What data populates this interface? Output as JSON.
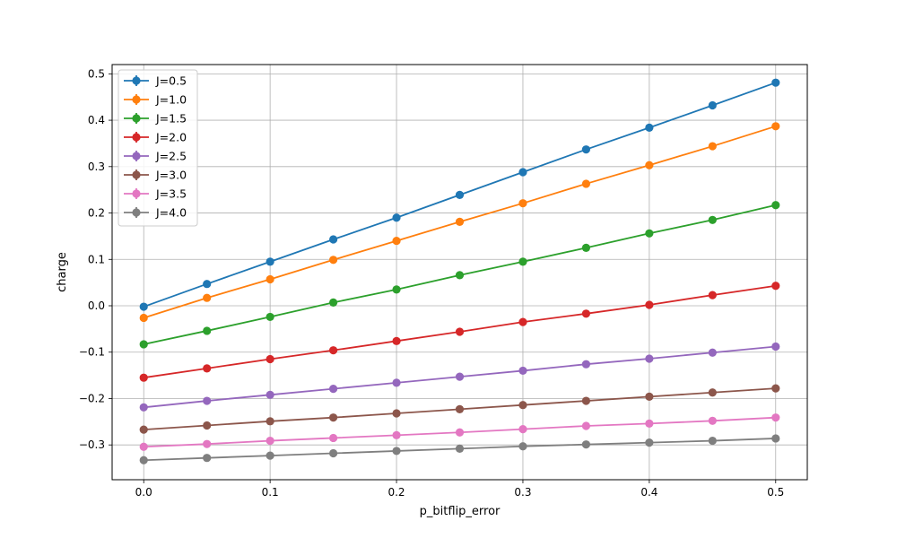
{
  "chart_data": {
    "type": "line",
    "title": "",
    "xlabel": "p_bitflip_error",
    "ylabel": "charge",
    "xlim": [
      -0.025,
      0.525
    ],
    "ylim": [
      -0.375,
      0.52
    ],
    "x": [
      0.0,
      0.05,
      0.1,
      0.15,
      0.2,
      0.25,
      0.3,
      0.35,
      0.4,
      0.45,
      0.5
    ],
    "x_ticks": [
      0.0,
      0.1,
      0.2,
      0.3,
      0.4,
      0.5
    ],
    "x_tick_labels": [
      "0.0",
      "0.1",
      "0.2",
      "0.3",
      "0.4",
      "0.5"
    ],
    "y_ticks": [
      -0.3,
      -0.2,
      -0.1,
      0.0,
      0.1,
      0.2,
      0.3,
      0.4,
      0.5
    ],
    "y_tick_labels": [
      "−0.3",
      "−0.2",
      "−0.1",
      "0.0",
      "0.1",
      "0.2",
      "0.3",
      "0.4",
      "0.5"
    ],
    "grid": true,
    "legend_position": "top-left",
    "series": [
      {
        "name": "J=0.5",
        "color": "#1f77b4",
        "values": [
          -0.002,
          0.047,
          0.095,
          0.143,
          0.19,
          0.239,
          0.288,
          0.337,
          0.384,
          0.432,
          0.481
        ]
      },
      {
        "name": "J=1.0",
        "color": "#ff7f0e",
        "values": [
          -0.026,
          0.017,
          0.057,
          0.099,
          0.14,
          0.181,
          0.221,
          0.263,
          0.303,
          0.344,
          0.387
        ]
      },
      {
        "name": "J=1.5",
        "color": "#2ca02c",
        "values": [
          -0.083,
          -0.054,
          -0.024,
          0.007,
          0.035,
          0.066,
          0.095,
          0.125,
          0.156,
          0.185,
          0.217
        ]
      },
      {
        "name": "J=2.0",
        "color": "#d62728",
        "values": [
          -0.155,
          -0.135,
          -0.115,
          -0.096,
          -0.076,
          -0.056,
          -0.035,
          -0.017,
          0.002,
          0.023,
          0.043
        ]
      },
      {
        "name": "J=2.5",
        "color": "#9467bd",
        "values": [
          -0.219,
          -0.205,
          -0.192,
          -0.179,
          -0.166,
          -0.153,
          -0.14,
          -0.126,
          -0.114,
          -0.101,
          -0.088
        ]
      },
      {
        "name": "J=3.0",
        "color": "#8c564b",
        "values": [
          -0.267,
          -0.258,
          -0.249,
          -0.241,
          -0.232,
          -0.223,
          -0.214,
          -0.205,
          -0.196,
          -0.187,
          -0.178
        ]
      },
      {
        "name": "J=3.5",
        "color": "#e377c2",
        "values": [
          -0.304,
          -0.298,
          -0.291,
          -0.285,
          -0.279,
          -0.273,
          -0.266,
          -0.259,
          -0.254,
          -0.248,
          -0.241
        ]
      },
      {
        "name": "J=4.0",
        "color": "#7f7f7f",
        "values": [
          -0.333,
          -0.328,
          -0.323,
          -0.318,
          -0.313,
          -0.308,
          -0.303,
          -0.299,
          -0.295,
          -0.291,
          -0.286
        ]
      }
    ]
  }
}
